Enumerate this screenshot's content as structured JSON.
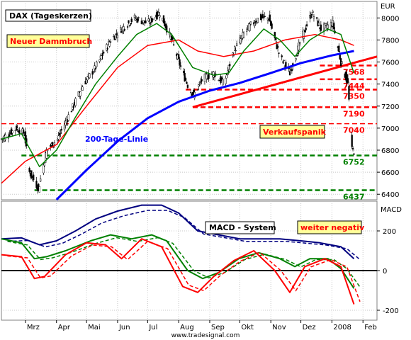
{
  "chart_data": [
    {
      "type": "candlestick",
      "title": "DAX (Tageskerzen)",
      "unit": "EUR",
      "ylim": [
        6350,
        8150
      ],
      "yticks": [
        6400,
        6600,
        6800,
        7000,
        7200,
        7400,
        7600,
        7800,
        8000
      ],
      "x_months": [
        "Mrz",
        "Apr",
        "Mai",
        "Jun",
        "Jul",
        "Aug",
        "Sep",
        "Okt",
        "Nov",
        "Dez",
        "2008",
        "Feb"
      ],
      "x_start": "2007-02-05",
      "x_end": "2008-02-15",
      "series": [
        {
          "name": "",
          "color": "#000000",
          "points": [
            [
              "2007-02-05",
              6900
            ],
            [
              "2007-02-20",
              7000
            ],
            [
              "2007-02-28",
              6950
            ],
            [
              "2007-03-05",
              6600
            ],
            [
              "2007-03-14",
              6450
            ],
            [
              "2007-03-22",
              6800
            ],
            [
              "2007-04-02",
              6900
            ],
            [
              "2007-04-15",
              7150
            ],
            [
              "2007-04-28",
              7400
            ],
            [
              "2007-05-10",
              7550
            ],
            [
              "2007-05-25",
              7800
            ],
            [
              "2007-06-05",
              7900
            ],
            [
              "2007-06-18",
              8000
            ],
            [
              "2007-07-01",
              7950
            ],
            [
              "2007-07-13",
              8050
            ],
            [
              "2007-07-25",
              7800
            ],
            [
              "2007-08-05",
              7500
            ],
            [
              "2007-08-12",
              7350
            ],
            [
              "2007-08-16",
              7300
            ],
            [
              "2007-08-25",
              7450
            ],
            [
              "2007-09-05",
              7500
            ],
            [
              "2007-09-15",
              7400
            ],
            [
              "2007-09-25",
              7700
            ],
            [
              "2007-10-08",
              7900
            ],
            [
              "2007-10-20",
              8000
            ],
            [
              "2007-10-30",
              8000
            ],
            [
              "2007-11-10",
              7650
            ],
            [
              "2007-11-20",
              7500
            ],
            [
              "2007-12-01",
              7800
            ],
            [
              "2007-12-12",
              8050
            ],
            [
              "2007-12-21",
              7900
            ],
            [
              "2008-01-02",
              7950
            ],
            [
              "2008-01-10",
              7600
            ],
            [
              "2008-01-17",
              7400
            ],
            [
              "2008-01-21",
              6800
            ],
            [
              "2008-01-23",
              6790
            ]
          ]
        },
        {
          "name": "",
          "color": "#008000",
          "points": [
            [
              "2007-02-05",
              6900
            ],
            [
              "2007-02-25",
              6950
            ],
            [
              "2007-03-15",
              6650
            ],
            [
              "2007-04-01",
              6800
            ],
            [
              "2007-04-20",
              7100
            ],
            [
              "2007-05-10",
              7400
            ],
            [
              "2007-06-01",
              7650
            ],
            [
              "2007-06-20",
              7850
            ],
            [
              "2007-07-10",
              7950
            ],
            [
              "2007-07-25",
              7850
            ],
            [
              "2007-08-15",
              7550
            ],
            [
              "2007-09-05",
              7480
            ],
            [
              "2007-09-20",
              7500
            ],
            [
              "2007-10-05",
              7700
            ],
            [
              "2007-10-25",
              7900
            ],
            [
              "2007-11-10",
              7800
            ],
            [
              "2007-11-25",
              7650
            ],
            [
              "2007-12-10",
              7800
            ],
            [
              "2007-12-28",
              7900
            ],
            [
              "2008-01-10",
              7850
            ],
            [
              "2008-01-23",
              7500
            ]
          ]
        },
        {
          "name": "",
          "color": "#ff0000",
          "points": [
            [
              "2007-02-05",
              6500
            ],
            [
              "2007-03-01",
              6700
            ],
            [
              "2007-04-01",
              6850
            ],
            [
              "2007-05-01",
              7200
            ],
            [
              "2007-06-01",
              7550
            ],
            [
              "2007-07-01",
              7750
            ],
            [
              "2007-08-01",
              7800
            ],
            [
              "2007-08-20",
              7700
            ],
            [
              "2007-09-15",
              7650
            ],
            [
              "2007-10-15",
              7700
            ],
            [
              "2007-11-15",
              7800
            ],
            [
              "2007-12-15",
              7850
            ],
            [
              "2008-01-10",
              7800
            ],
            [
              "2008-01-23",
              7750
            ]
          ]
        },
        {
          "name": "200-Tage-Linie",
          "color": "#0000ff",
          "points": [
            [
              "2007-04-01",
              6350
            ],
            [
              "2007-05-01",
              6620
            ],
            [
              "2007-06-01",
              6880
            ],
            [
              "2007-07-01",
              7090
            ],
            [
              "2007-08-01",
              7240
            ],
            [
              "2007-09-01",
              7340
            ],
            [
              "2007-10-01",
              7410
            ],
            [
              "2007-11-01",
              7500
            ],
            [
              "2007-12-01",
              7590
            ],
            [
              "2008-01-01",
              7660
            ],
            [
              "2008-01-23",
              7700
            ]
          ]
        }
      ],
      "lines": [
        {
          "kind": "trend",
          "color": "#ff0000",
          "from": [
            "2007-08-15",
            7190
          ],
          "to": [
            "2008-02-15",
            7650
          ]
        },
        {
          "kind": "level",
          "value": 7568,
          "label": "7568",
          "color": "#ff0000"
        },
        {
          "kind": "level",
          "value": 7444,
          "label": "7444",
          "color": "#ff0000"
        },
        {
          "kind": "level",
          "value": 7350,
          "label": "7350",
          "color": "#ff0000"
        },
        {
          "kind": "level",
          "value": 7190,
          "label": "7190",
          "color": "#ff0000"
        },
        {
          "kind": "level",
          "value": 7040,
          "label": "7040",
          "color": "#ff0000"
        },
        {
          "kind": "level",
          "value": 6752,
          "label": "6752",
          "color": "#008000"
        },
        {
          "kind": "level",
          "value": 6437,
          "label": "6437",
          "color": "#008000"
        }
      ],
      "annotations": [
        {
          "text": "Neuer Dammbruch",
          "color": "#ff0000",
          "boxed": true,
          "placement": "top-left"
        },
        {
          "text": "200-Tage-Linie",
          "color": "#0000ff",
          "boxed": false,
          "placement": "center-left"
        },
        {
          "text": "Verkaufspanik",
          "color": "#ff0000",
          "boxed": true,
          "placement": "center-right"
        }
      ],
      "grid": true
    },
    {
      "type": "line",
      "title": "MACD - System",
      "unit": "MACD",
      "ylim": [
        -250,
        350
      ],
      "yticks": [
        -200,
        0,
        200
      ],
      "zero_line": true,
      "series": [
        {
          "name": "",
          "color": "#000080",
          "points": [
            [
              "2007-02-05",
              160
            ],
            [
              "2007-02-25",
              165
            ],
            [
              "2007-03-15",
              130
            ],
            [
              "2007-04-01",
              150
            ],
            [
              "2007-04-20",
              200
            ],
            [
              "2007-05-10",
              260
            ],
            [
              "2007-06-01",
              300
            ],
            [
              "2007-06-25",
              330
            ],
            [
              "2007-07-15",
              330
            ],
            [
              "2007-08-01",
              290
            ],
            [
              "2007-08-20",
              200
            ],
            [
              "2007-09-10",
              180
            ],
            [
              "2007-10-01",
              160
            ],
            [
              "2007-10-20",
              160
            ],
            [
              "2007-11-10",
              160
            ],
            [
              "2007-12-01",
              150
            ],
            [
              "2007-12-20",
              140
            ],
            [
              "2008-01-10",
              120
            ],
            [
              "2008-01-23",
              60
            ]
          ]
        },
        {
          "name": "",
          "color": "#008000",
          "points": [
            [
              "2007-02-05",
              160
            ],
            [
              "2007-02-25",
              140
            ],
            [
              "2007-03-10",
              60
            ],
            [
              "2007-03-22",
              70
            ],
            [
              "2007-04-10",
              100
            ],
            [
              "2007-05-05",
              150
            ],
            [
              "2007-05-25",
              180
            ],
            [
              "2007-06-15",
              160
            ],
            [
              "2007-07-05",
              180
            ],
            [
              "2007-07-20",
              150
            ],
            [
              "2007-08-10",
              0
            ],
            [
              "2007-08-25",
              -40
            ],
            [
              "2007-09-10",
              -10
            ],
            [
              "2007-09-30",
              60
            ],
            [
              "2007-10-20",
              90
            ],
            [
              "2007-11-10",
              60
            ],
            [
              "2007-11-25",
              20
            ],
            [
              "2007-12-10",
              60
            ],
            [
              "2007-12-28",
              60
            ],
            [
              "2008-01-10",
              10
            ],
            [
              "2008-01-23",
              -90
            ]
          ]
        },
        {
          "name": "",
          "color": "#ff0000",
          "points": [
            [
              "2007-02-05",
              80
            ],
            [
              "2007-02-25",
              70
            ],
            [
              "2007-03-10",
              -40
            ],
            [
              "2007-03-20",
              -30
            ],
            [
              "2007-04-10",
              80
            ],
            [
              "2007-05-01",
              140
            ],
            [
              "2007-05-20",
              130
            ],
            [
              "2007-06-05",
              60
            ],
            [
              "2007-06-25",
              160
            ],
            [
              "2007-07-15",
              120
            ],
            [
              "2007-08-05",
              -80
            ],
            [
              "2007-08-20",
              -110
            ],
            [
              "2007-09-05",
              -30
            ],
            [
              "2007-09-25",
              50
            ],
            [
              "2007-10-15",
              100
            ],
            [
              "2007-11-05",
              0
            ],
            [
              "2007-11-20",
              -110
            ],
            [
              "2007-12-05",
              20
            ],
            [
              "2007-12-25",
              60
            ],
            [
              "2008-01-10",
              20
            ],
            [
              "2008-01-23",
              -170
            ]
          ]
        }
      ],
      "annotations": [
        {
          "text": "weiter negativ",
          "color": "#ff0000",
          "boxed": true,
          "placement": "top-right"
        }
      ],
      "grid": true
    }
  ],
  "credit": "www.tradesignal.com"
}
